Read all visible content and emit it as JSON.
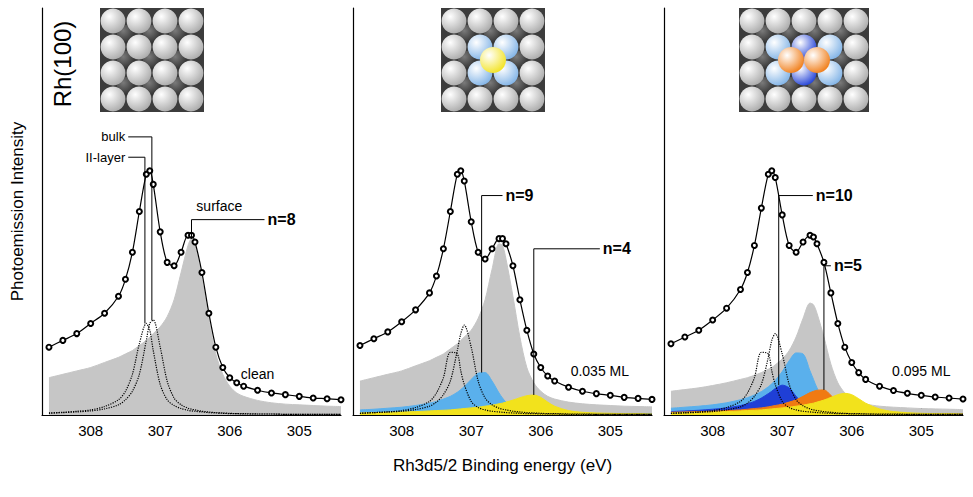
{
  "chart_data": [
    {
      "type": "line",
      "sample": "Rh(100)",
      "y_label": "Photoemission Intensity",
      "xlim": [
        308.7,
        304.4
      ],
      "xticks": [
        305,
        306,
        307,
        308
      ],
      "ylim": [
        0,
        120
      ],
      "tick_labels": "x",
      "grid": false,
      "x": [
        308.6,
        308.4,
        308.2,
        308.0,
        307.8,
        307.6,
        307.5,
        307.4,
        307.3,
        307.2,
        307.15,
        307.1,
        307.0,
        306.9,
        306.8,
        306.7,
        306.6,
        306.55,
        306.5,
        306.4,
        306.3,
        306.2,
        306.1,
        306.0,
        305.9,
        305.8,
        305.6,
        305.4,
        305.2,
        305.0,
        304.8,
        304.6,
        304.4
      ],
      "series": [
        {
          "type": "area",
          "color": "#c6c6c6",
          "values": [
            11,
            12,
            13,
            14,
            15.5,
            17,
            18,
            19,
            20.5,
            22,
            23,
            24,
            26,
            29,
            34,
            42,
            50,
            52,
            50,
            40,
            28,
            18,
            12,
            8.5,
            6.5,
            5.5,
            4.3,
            3.6,
            3.2,
            3,
            2.8,
            2.6,
            2.5
          ]
        },
        {
          "type": "line",
          "line_style": "dotted",
          "color": "#000000",
          "values": [
            0.5,
            0.7,
            0.9,
            1.2,
            1.8,
            3,
            4.5,
            7,
            12,
            22,
            27,
            28,
            20,
            10,
            5,
            3,
            2,
            1.7,
            1.5,
            1.1,
            0.9,
            0.7,
            0.6,
            0.5,
            0.4,
            0.4,
            0.3,
            0.3,
            0.2,
            0.2,
            0.2,
            0.2,
            0.2
          ]
        },
        {
          "type": "line",
          "line_style": "dotted",
          "color": "#000000",
          "values": [
            0.6,
            0.8,
            1.1,
            1.5,
            2.5,
            4.5,
            7,
            12,
            21,
            27,
            25,
            19,
            9,
            4.5,
            2.8,
            1.9,
            1.4,
            1.2,
            1.1,
            0.9,
            0.7,
            0.6,
            0.5,
            0.4,
            0.4,
            0.3,
            0.3,
            0.3,
            0.2,
            0.2,
            0.2,
            0.2,
            0.2
          ]
        },
        {
          "type": "line",
          "marker": "circle",
          "color": "#000000",
          "values": [
            20,
            22,
            24,
            27,
            30,
            35,
            40,
            48,
            60,
            71,
            72,
            68,
            54,
            45,
            44,
            48,
            53,
            53,
            51,
            42,
            30,
            20,
            14,
            11,
            9.5,
            8.5,
            7.3,
            6.5,
            6,
            5.5,
            5,
            4.8,
            4.5
          ]
        }
      ],
      "annotations": [
        {
          "text": "surface",
          "x": 306.15,
          "y": 61.5
        },
        {
          "text": "clean",
          "x": 305.6,
          "y": 12
        }
      ],
      "component_labels": [
        {
          "text": "bulk",
          "x": 307.46,
          "y": 82,
          "to": [
            307.12,
            28
          ]
        },
        {
          "text": "II-layer",
          "x": 307.46,
          "y": 76,
          "to": [
            307.22,
            27
          ]
        }
      ],
      "site_labels": [
        {
          "text": "n=8",
          "x": 305.5,
          "y": 57.6,
          "to": [
            306.55,
            52
          ]
        }
      ]
    },
    {
      "type": "line",
      "x_label": "Rh3d5/2 Binding energy (eV)",
      "xlim": [
        308.7,
        304.4
      ],
      "xticks": [
        305,
        306,
        307,
        308
      ],
      "ylim": [
        0,
        120
      ],
      "tick_labels": "x",
      "grid": false,
      "x": [
        308.6,
        308.4,
        308.2,
        308.0,
        307.8,
        307.6,
        307.5,
        307.4,
        307.3,
        307.2,
        307.15,
        307.1,
        307.0,
        306.9,
        306.8,
        306.7,
        306.6,
        306.55,
        306.5,
        306.4,
        306.3,
        306.2,
        306.1,
        306.0,
        305.9,
        305.8,
        305.6,
        305.4,
        305.2,
        305.0,
        304.8,
        304.6,
        304.4
      ],
      "series": [
        {
          "type": "area",
          "color": "#c6c6c6",
          "values": [
            10,
            11,
            12,
            13,
            14.5,
            16,
            17,
            18,
            19.5,
            21,
            22,
            23,
            25,
            28.5,
            34,
            43,
            50.5,
            50,
            46,
            35,
            23,
            14,
            9.5,
            7,
            5.5,
            4.7,
            3.8,
            3.3,
            3,
            2.8,
            2.6,
            2.5,
            2.4
          ]
        },
        {
          "type": "area",
          "color": "#5ab0ec",
          "values": [
            1.5,
            1.7,
            2,
            2.3,
            2.8,
            3.5,
            4,
            4.7,
            5.5,
            6.7,
            7.5,
            8.4,
            10.5,
            12.3,
            12.5,
            10,
            6.5,
            5,
            3.8,
            2.2,
            1.4,
            1,
            0.8,
            0.6,
            0.5,
            0.5,
            0.4,
            0.4,
            0.3,
            0.3,
            0.3,
            0.3,
            0.3
          ]
        },
        {
          "type": "area",
          "color": "#f2e21c",
          "values": [
            0.6,
            0.7,
            0.8,
            0.9,
            1,
            1.2,
            1.3,
            1.4,
            1.5,
            1.7,
            1.8,
            1.9,
            2.1,
            2.3,
            2.6,
            2.9,
            3.3,
            3.5,
            3.8,
            4.4,
            5.1,
            5.7,
            5.9,
            5.2,
            3.8,
            2.6,
            1.3,
            0.8,
            0.6,
            0.5,
            0.4,
            0.4,
            0.3
          ]
        },
        {
          "type": "line",
          "line_style": "dotted",
          "color": "#000000",
          "values": [
            0.5,
            0.7,
            0.9,
            1.1,
            1.6,
            2.6,
            3.8,
            6,
            10,
            19,
            24,
            26.5,
            20,
            10,
            5,
            3,
            2,
            1.7,
            1.5,
            1.1,
            0.9,
            0.7,
            0.6,
            0.5,
            0.4,
            0.4,
            0.3,
            0.3,
            0.2,
            0.2,
            0.2,
            0.2,
            0.2
          ]
        },
        {
          "type": "line",
          "line_style": "dotted",
          "color": "#000000",
          "values": [
            0.5,
            0.7,
            0.9,
            1.3,
            2.2,
            4,
            6.5,
            11,
            18.5,
            18,
            13,
            9,
            4,
            2.2,
            1.5,
            1.1,
            0.9,
            0.8,
            0.7,
            0.6,
            0.5,
            0.4,
            0.4,
            0.3,
            0.3,
            0.3,
            0.2,
            0.2,
            0.2,
            0.2,
            0.2,
            0.2,
            0.2
          ]
        },
        {
          "type": "line",
          "marker": "circle",
          "color": "#000000",
          "values": [
            20.5,
            22.5,
            24.5,
            27.5,
            31,
            36,
            41,
            49,
            60,
            71,
            72,
            69,
            57,
            48,
            46,
            49,
            52,
            52,
            50.5,
            44,
            34,
            25,
            18,
            14,
            11.5,
            10,
            8.2,
            7,
            6.3,
            5.8,
            5.2,
            4.9,
            4.6
          ]
        }
      ],
      "annotations": [
        {
          "text": "0.035 ML",
          "x": 305.15,
          "y": 13
        }
      ],
      "site_labels": [
        {
          "text": "n=9",
          "x": 306.55,
          "y": 64.7,
          "to": [
            306.85,
            12.5
          ]
        },
        {
          "text": "n=4",
          "x": 305.15,
          "y": 49,
          "to": [
            306.1,
            5.9
          ]
        }
      ]
    },
    {
      "type": "line",
      "xlim": [
        308.7,
        304.4
      ],
      "xticks": [
        305,
        306,
        307,
        308
      ],
      "ylim": [
        0,
        120
      ],
      "tick_labels": "x",
      "grid": false,
      "x": [
        308.6,
        308.4,
        308.2,
        308.0,
        307.8,
        307.6,
        307.5,
        307.4,
        307.3,
        307.2,
        307.15,
        307.1,
        307.0,
        306.9,
        306.8,
        306.7,
        306.6,
        306.55,
        306.5,
        306.4,
        306.3,
        306.2,
        306.1,
        306.0,
        305.9,
        305.8,
        305.6,
        305.4,
        305.2,
        305.0,
        304.8,
        304.6,
        304.4
      ],
      "series": [
        {
          "type": "area",
          "color": "#c6c6c6",
          "values": [
            7,
            7.5,
            8,
            8.7,
            9.5,
            10.5,
            11,
            11.7,
            12.5,
            13.5,
            14,
            14.8,
            16.5,
            19,
            23,
            28.5,
            33,
            32.5,
            30,
            23,
            15,
            9.5,
            6.5,
            4.8,
            3.8,
            3.2,
            2.6,
            2.3,
            2.1,
            1.9,
            1.8,
            1.7,
            1.6
          ]
        },
        {
          "type": "area",
          "color": "#5ab0ec",
          "values": [
            2,
            2.3,
            2.6,
            3,
            3.6,
            4.5,
            5.1,
            5.9,
            6.9,
            8.3,
            9.2,
            10.2,
            12.8,
            16,
            18.3,
            18,
            13,
            10.5,
            8,
            4.5,
            2.6,
            1.7,
            1.2,
            0.9,
            0.8,
            0.7,
            0.6,
            0.5,
            0.5,
            0.4,
            0.4,
            0.4,
            0.4
          ]
        },
        {
          "type": "area",
          "color": "#1f3fd6",
          "values": [
            1,
            1.2,
            1.4,
            1.7,
            2.1,
            2.8,
            3.3,
            4,
            5,
            6.3,
            7,
            7.8,
            8.8,
            8,
            5.5,
            3.3,
            2,
            1.6,
            1.3,
            0.9,
            0.7,
            0.6,
            0.5,
            0.4,
            0.4,
            0.3,
            0.3,
            0.3,
            0.2,
            0.2,
            0.2,
            0.2,
            0.2
          ]
        },
        {
          "type": "area",
          "color": "#f07a12",
          "values": [
            0.8,
            0.9,
            1,
            1.1,
            1.3,
            1.5,
            1.7,
            1.9,
            2.1,
            2.4,
            2.6,
            2.8,
            3.2,
            3.8,
            4.5,
            5.5,
            6.6,
            7,
            7.3,
            7.4,
            5.8,
            3.6,
            2,
            1.2,
            0.9,
            0.7,
            0.5,
            0.4,
            0.4,
            0.3,
            0.3,
            0.3,
            0.3
          ]
        },
        {
          "type": "area",
          "color": "#f2e21c",
          "values": [
            0.6,
            0.7,
            0.8,
            0.9,
            1,
            1.2,
            1.3,
            1.4,
            1.5,
            1.7,
            1.8,
            1.9,
            2.1,
            2.3,
            2.6,
            2.9,
            3.3,
            3.5,
            3.8,
            4.4,
            5.2,
            6,
            6.4,
            6,
            4.8,
            3.5,
            1.8,
            1,
            0.7,
            0.5,
            0.4,
            0.4,
            0.3
          ]
        },
        {
          "type": "line",
          "line_style": "dotted",
          "color": "#000000",
          "values": [
            0.5,
            0.6,
            0.8,
            1,
            1.5,
            2.4,
            3.5,
            5.5,
            9,
            17,
            22,
            24,
            18,
            9,
            4.5,
            2.7,
            1.8,
            1.5,
            1.3,
            1,
            0.8,
            0.6,
            0.5,
            0.4,
            0.4,
            0.3,
            0.3,
            0.3,
            0.2,
            0.2,
            0.2,
            0.2,
            0.2
          ]
        },
        {
          "type": "line",
          "line_style": "dotted",
          "color": "#000000",
          "values": [
            0.5,
            0.7,
            0.9,
            1.3,
            2.2,
            4,
            6.5,
            11,
            18.5,
            18,
            13,
            9,
            4,
            2.2,
            1.5,
            1.1,
            0.9,
            0.8,
            0.7,
            0.6,
            0.5,
            0.4,
            0.4,
            0.3,
            0.3,
            0.3,
            0.2,
            0.2,
            0.2,
            0.2,
            0.2,
            0.2,
            0.2
          ]
        },
        {
          "type": "line",
          "marker": "circle",
          "color": "#000000",
          "values": [
            21,
            23,
            25,
            28,
            31.5,
            37,
            42,
            50,
            61,
            71,
            72,
            70,
            59,
            50,
            48,
            51,
            53,
            52.5,
            50.5,
            45,
            36,
            27,
            20,
            15.5,
            12.5,
            10.5,
            8.5,
            7.2,
            6.4,
            5.8,
            5.3,
            5,
            4.7
          ]
        }
      ],
      "annotations": [
        {
          "text": "0.095 ML",
          "x": 305.0,
          "y": 13
        }
      ],
      "site_labels": [
        {
          "text": "n=10",
          "x": 306.56,
          "y": 64.7,
          "to": [
            307.05,
            8.8
          ]
        },
        {
          "text": "n=5",
          "x": 306.3,
          "y": 44,
          "to": [
            306.4,
            7.4
          ]
        }
      ]
    }
  ]
}
